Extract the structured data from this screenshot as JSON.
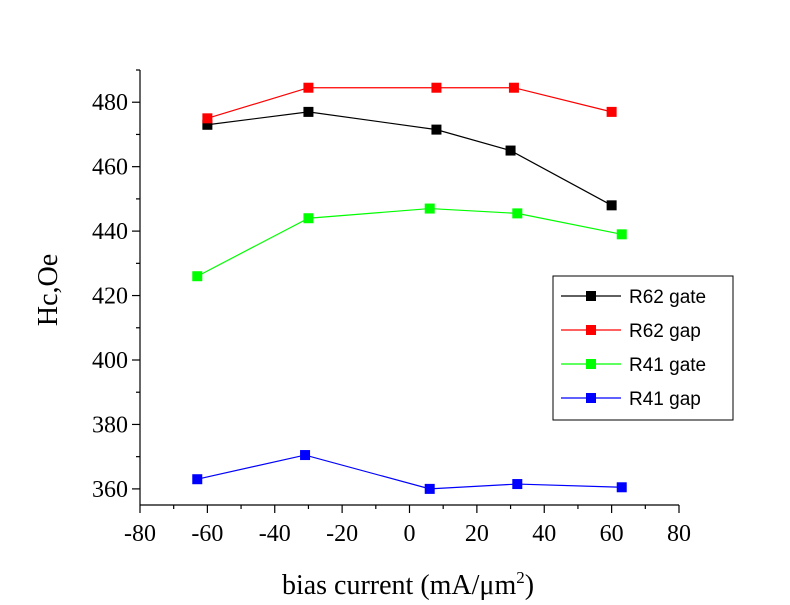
{
  "chart_data": {
    "type": "line",
    "xlabel": "bias current (mA/μm",
    "xlabel_sup": "2",
    "xlabel_tail": ")",
    "ylabel": "Hc,Oe",
    "xlim": [
      -80,
      80
    ],
    "ylim": [
      355,
      490
    ],
    "xticks": [
      -80,
      -60,
      -40,
      -20,
      0,
      20,
      40,
      60,
      80
    ],
    "yticks": [
      360,
      380,
      400,
      420,
      440,
      460,
      480
    ],
    "grid": false,
    "legend_position": "right",
    "series": [
      {
        "name": "R62 gate",
        "color": "#000000",
        "x": [
          -60,
          -30,
          8,
          30,
          60
        ],
        "y": [
          473,
          477,
          471.5,
          465,
          448
        ]
      },
      {
        "name": "R62 gap",
        "color": "#ff0000",
        "x": [
          -60,
          -30,
          8,
          31,
          60
        ],
        "y": [
          475,
          484.5,
          484.5,
          484.5,
          477
        ]
      },
      {
        "name": "R41 gate",
        "color": "#00ff00",
        "x": [
          -63,
          -30,
          6,
          32,
          63
        ],
        "y": [
          426,
          444,
          447,
          445.5,
          439
        ]
      },
      {
        "name": "R41 gap",
        "color": "#0000ff",
        "x": [
          -63,
          -31,
          6,
          32,
          63
        ],
        "y": [
          363,
          370.5,
          360,
          361.5,
          360.5
        ]
      }
    ]
  }
}
